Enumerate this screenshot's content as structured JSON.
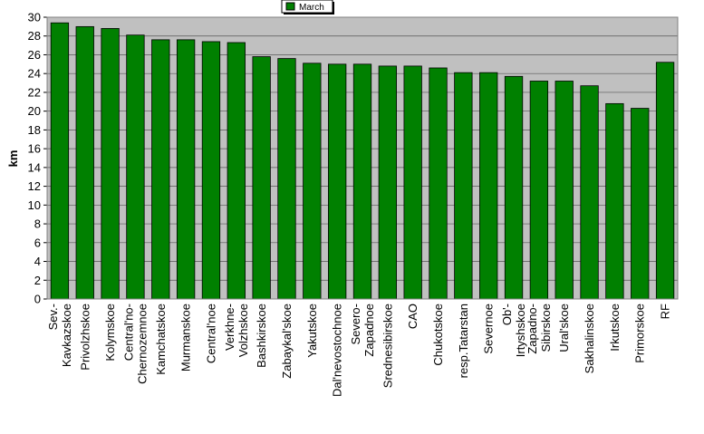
{
  "chart_data": {
    "type": "bar",
    "title": "",
    "xlabel": "",
    "ylabel": "km",
    "ylim": [
      0,
      30
    ],
    "yticks": [
      0,
      2,
      4,
      6,
      8,
      10,
      12,
      14,
      16,
      18,
      20,
      22,
      24,
      26,
      28,
      30
    ],
    "grid": "horizontal",
    "legend_position": "top-center",
    "colors": {
      "bar": "#008000",
      "plot_background": "#c0c0c0",
      "grid": "#000000"
    },
    "categories": [
      "Sev.-Kavkazskoe",
      "Privolzhskoe",
      "Kolymskoe",
      "Central'no-Chernozemnoe",
      "Kamchatskoe",
      "Murmanskoe",
      "Central'noe",
      "Verkhne-Volzhskoe",
      "Bashkirskoe",
      "Zabaykal'skoe",
      "Yakutskoe",
      "Dal'nevostochnoe",
      "Severo-Zapadnoe",
      "Srednesibirskoe",
      "CAO",
      "Chukotskoe",
      "resp.Tatarstan",
      "Severnoe",
      "Ob'-Irtyshskoe",
      "Zapadno-Sibirskoe",
      "Ural'skoe",
      "Sakhalinskoe",
      "Irkutskoe",
      "Primorskoe",
      "RF"
    ],
    "tick_label_lines": [
      [
        "Sev.-",
        "Kavkazskoe"
      ],
      [
        "Privolzhskoe"
      ],
      [
        "Kolymskoe"
      ],
      [
        "Central'no-",
        "Chernozemnoe"
      ],
      [
        "Kamchatskoe"
      ],
      [
        "Murmanskoe"
      ],
      [
        "Central'noe"
      ],
      [
        "Verkhne-",
        "Volzhskoe"
      ],
      [
        "Bashkirskoe"
      ],
      [
        "Zabaykal'skoe"
      ],
      [
        "Yakutskoe"
      ],
      [
        "Dal'nevostochnoe"
      ],
      [
        "Severo-",
        "Zapadnoe"
      ],
      [
        "Srednesibirskoe"
      ],
      [
        "CAO"
      ],
      [
        "Chukotskoe"
      ],
      [
        "resp.Tatarstan"
      ],
      [
        "Severnoe"
      ],
      [
        "Ob'-",
        "Irtyshskoe"
      ],
      [
        "Zapadno-",
        "Sibirskoe"
      ],
      [
        "Ural'skoe"
      ],
      [
        "Sakhalinskoe"
      ],
      [
        "Irkutskoe"
      ],
      [
        "Primorskoe"
      ],
      [
        "RF"
      ]
    ],
    "series": [
      {
        "name": "March",
        "values": [
          29.4,
          29.0,
          28.8,
          28.1,
          27.6,
          27.6,
          27.4,
          27.3,
          25.8,
          25.6,
          25.1,
          25.0,
          25.0,
          24.8,
          24.8,
          24.6,
          24.1,
          24.1,
          23.7,
          23.2,
          23.2,
          22.7,
          20.8,
          20.3,
          25.2
        ]
      }
    ]
  }
}
